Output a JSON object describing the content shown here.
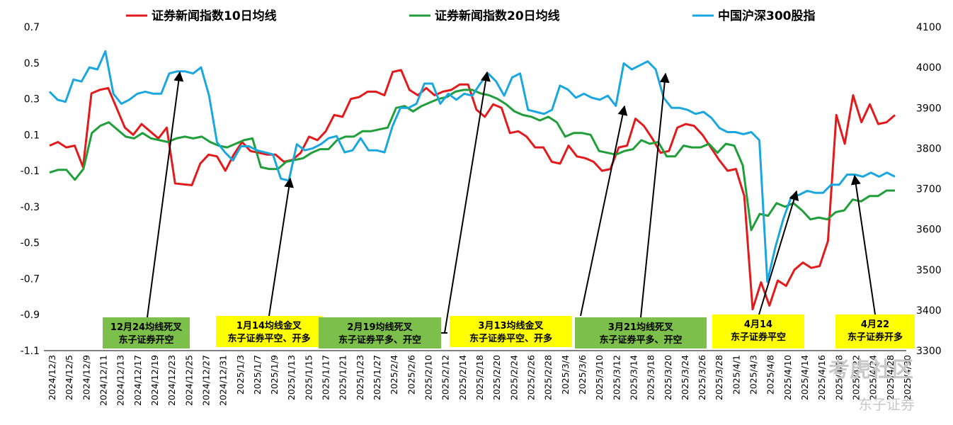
{
  "chart_data": {
    "type": "line",
    "left_axis": {
      "ylim": [
        -1.1,
        0.7
      ],
      "ticks": [
        "0.7",
        "0.5",
        "0.3",
        "0.1",
        "-0.1",
        "-0.3",
        "-0.5",
        "-0.7",
        "-0.9",
        "-1.1"
      ]
    },
    "right_axis": {
      "ylim": [
        3300,
        4100
      ],
      "ticks": [
        "4100",
        "4000",
        "3900",
        "3800",
        "3700",
        "3600",
        "3500",
        "3400",
        "3300"
      ]
    },
    "legend_position": "top",
    "x_tick_labels": [
      "2024/12/3",
      "2024/12/5",
      "2024/12/9",
      "2024/12/11",
      "2024/12/13",
      "2024/12/17",
      "2024/12/19",
      "2024/12/23",
      "2024/12/25",
      "2024/12/27",
      "2024/12/31",
      "2025/1/3",
      "2025/1/7",
      "2025/1/9",
      "2025/1/13",
      "2025/1/15",
      "2025/1/17",
      "2025/1/21",
      "2025/1/23",
      "2025/1/27",
      "2025/2/4",
      "2025/2/6",
      "2025/2/10",
      "2025/2/12",
      "2025/2/14",
      "2025/2/18",
      "2025/2/20",
      "2025/2/24",
      "2025/2/26",
      "2025/2/28",
      "2025/3/4",
      "2025/3/6",
      "2025/3/10",
      "2025/3/12",
      "2025/3/14",
      "2025/3/18",
      "2025/3/20",
      "2025/3/24",
      "2025/3/26",
      "2025/3/28",
      "2025/4/1",
      "2025/4/3",
      "2025/4/8",
      "2025/4/10",
      "2025/4/14",
      "2025/4/16",
      "2025/4/18",
      "2025/4/22",
      "2025/4/24",
      "2025/4/28",
      "2025/4/30"
    ],
    "series": [
      {
        "name": "证券新闻指数10日均线",
        "axis": "left",
        "color": "#e31a1c",
        "values": [
          0.04,
          0.06,
          0.03,
          0.04,
          -0.08,
          0.33,
          0.35,
          0.36,
          0.25,
          0.14,
          0.1,
          0.16,
          0.12,
          0.08,
          0.14,
          -0.17,
          -0.175,
          -0.18,
          -0.06,
          -0.01,
          -0.02,
          -0.1,
          -0.01,
          0.06,
          0.01,
          0.0,
          -0.01,
          -0.01,
          -0.05,
          -0.04,
          0.0,
          0.09,
          0.07,
          0.12,
          0.21,
          0.2,
          0.3,
          0.31,
          0.34,
          0.34,
          0.32,
          0.45,
          0.46,
          0.35,
          0.32,
          0.36,
          0.32,
          0.34,
          0.35,
          0.38,
          0.38,
          0.24,
          0.2,
          0.27,
          0.25,
          0.11,
          0.12,
          0.09,
          0.03,
          0.03,
          -0.05,
          -0.06,
          0.04,
          -0.02,
          -0.03,
          -0.05,
          -0.1,
          -0.09,
          0.03,
          0.04,
          0.19,
          0.15,
          0.08,
          0.0,
          0.01,
          0.14,
          0.16,
          0.15,
          0.1,
          0.03,
          -0.04,
          -0.1,
          -0.09,
          -0.24,
          -0.87,
          -0.72,
          -0.85,
          -0.71,
          -0.74,
          -0.65,
          -0.61,
          -0.64,
          -0.63,
          -0.49,
          0.21,
          0.05,
          0.32,
          0.17,
          0.27,
          0.16,
          0.17,
          0.21
        ]
      },
      {
        "name": "证券新闻指数20日均线",
        "axis": "left",
        "color": "#1f9e3a",
        "values": [
          -0.11,
          -0.095,
          -0.095,
          -0.15,
          -0.09,
          0.11,
          0.15,
          0.17,
          0.13,
          0.09,
          0.08,
          0.11,
          0.08,
          0.07,
          0.06,
          0.08,
          0.09,
          0.08,
          0.09,
          0.06,
          0.04,
          0.03,
          0.05,
          0.07,
          0.08,
          -0.08,
          -0.09,
          -0.09,
          -0.05,
          -0.04,
          -0.03,
          0.0,
          0.02,
          0.02,
          0.07,
          0.09,
          0.09,
          0.12,
          0.12,
          0.13,
          0.14,
          0.25,
          0.26,
          0.23,
          0.26,
          0.28,
          0.3,
          0.31,
          0.34,
          0.35,
          0.35,
          0.33,
          0.32,
          0.3,
          0.27,
          0.23,
          0.21,
          0.2,
          0.18,
          0.2,
          0.17,
          0.09,
          0.11,
          0.11,
          0.1,
          0.01,
          0.0,
          -0.01,
          0.01,
          0.02,
          0.07,
          0.05,
          0.06,
          -0.02,
          -0.02,
          0.04,
          0.03,
          0.03,
          0.05,
          0.0,
          0.05,
          0.04,
          -0.07,
          -0.43,
          -0.34,
          -0.35,
          -0.28,
          -0.3,
          -0.28,
          -0.32,
          -0.37,
          -0.36,
          -0.37,
          -0.33,
          -0.32,
          -0.26,
          -0.27,
          -0.24,
          -0.24,
          -0.21,
          -0.21
        ]
      },
      {
        "name": "中国沪深300股指",
        "axis": "right",
        "color": "#1aa7e0",
        "values": [
          3940,
          3920,
          3915,
          3970,
          3965,
          4000,
          3995,
          4040,
          3935,
          3910,
          3920,
          3935,
          3940,
          3935,
          3935,
          3985,
          3990,
          3990,
          3985,
          4000,
          3930,
          3815,
          3790,
          3770,
          3805,
          3805,
          3795,
          3790,
          3785,
          3725,
          3720,
          3810,
          3795,
          3800,
          3810,
          3825,
          3830,
          3790,
          3795,
          3825,
          3795,
          3795,
          3790,
          3855,
          3900,
          3900,
          3910,
          3960,
          3960,
          3910,
          3935,
          3920,
          3935,
          3930,
          3960,
          3985,
          3965,
          3930,
          3975,
          3985,
          3895,
          3890,
          3885,
          3895,
          3955,
          3945,
          3925,
          3935,
          3925,
          3920,
          3930,
          3905,
          4010,
          3995,
          4005,
          4015,
          3995,
          3925,
          3900,
          3900,
          3895,
          3885,
          3890,
          3875,
          3850,
          3840,
          3840,
          3835,
          3840,
          3820,
          3470,
          3555,
          3625,
          3680,
          3685,
          3695,
          3690,
          3690,
          3710,
          3710,
          3735,
          3735,
          3730,
          3740,
          3730,
          3740,
          3730
        ]
      }
    ],
    "annotations": [
      {
        "line1": "12月24均线死叉",
        "line2": "东子证券开空",
        "box_color": "#7cc04b"
      },
      {
        "line1": "1月14均线金叉",
        "line2": "东子证券平空、开多",
        "box_color": "#ffff00"
      },
      {
        "line1": "2月19均线死叉",
        "line2": "东子证券平多、开空",
        "box_color": "#7cc04b"
      },
      {
        "line1": "3月13均线金叉",
        "line2": "东子证券平空、开多",
        "box_color": "#ffff00"
      },
      {
        "line1": "3月21均线死叉",
        "line2": "东子证券平多、开空",
        "box_color": "#7cc04b"
      },
      {
        "line1": "4月14",
        "line2": "东子证券平空",
        "box_color": "#ffff00"
      },
      {
        "line1": "4月22",
        "line2": "东子证券开多",
        "box_color": "#ffff00"
      }
    ],
    "watermark": {
      "text1": "考虎社区",
      "text2": "东子证券"
    }
  }
}
